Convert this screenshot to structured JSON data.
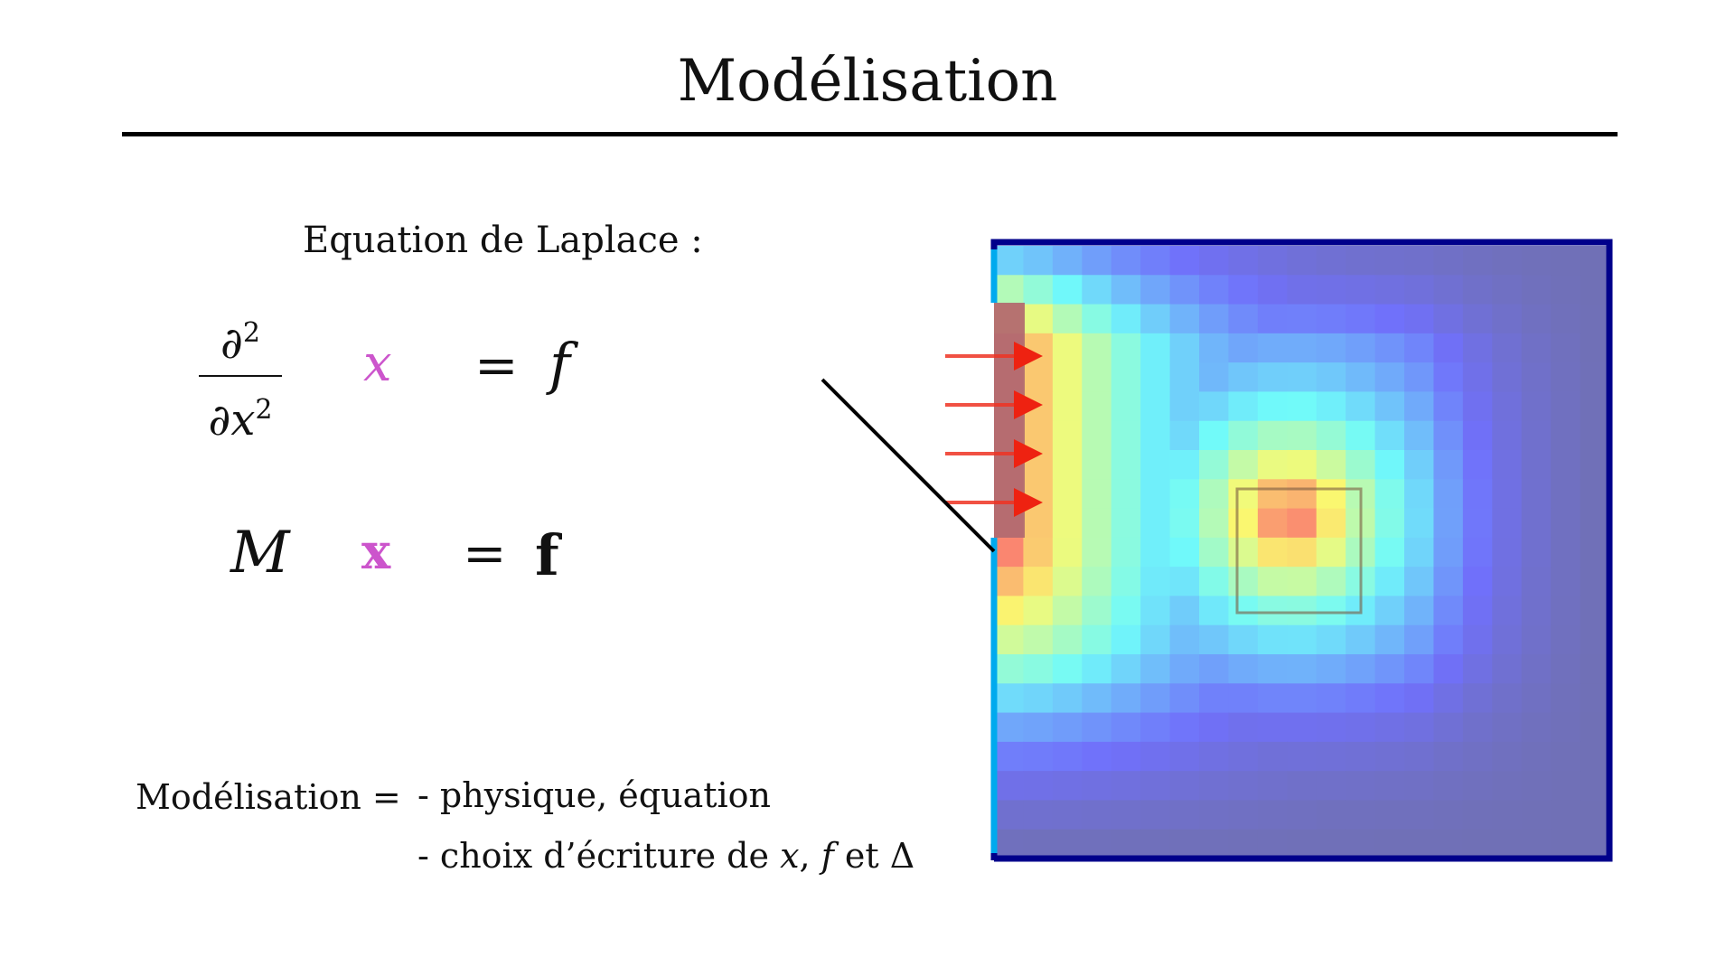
{
  "slide": {
    "title": "Modélisation"
  },
  "laplace": {
    "caption": "Equation de Laplace :",
    "fraction_numerator": "∂",
    "fraction_numerator_power": "2",
    "fraction_denominator": "∂x",
    "fraction_denominator_power": "2",
    "unknown": "x",
    "equals": "=",
    "rhs": "f"
  },
  "discrete": {
    "matrix": "M",
    "unknown": "x",
    "equals": "=",
    "rhs": "f"
  },
  "modeling": {
    "label": "Modélisation =",
    "item1": "- physique, équation",
    "item2_prefix": "- choix d’écriture de ",
    "item2_x": "x",
    "item2_comma": ", ",
    "item2_f": "f",
    "item2_and": " et ",
    "item2_delta": "Δ"
  },
  "colors": {
    "unknown_accent": "#cc55cc",
    "frame_border": "#00008b",
    "dirichlet_edge": "#00aaee",
    "arrow": "#ee3322",
    "pointer_line": "#000000"
  },
  "heatmap": {
    "colormap": "jet",
    "source_region": "left-edge-red-band",
    "inner_square": "center-right",
    "arrow_count": 4
  }
}
